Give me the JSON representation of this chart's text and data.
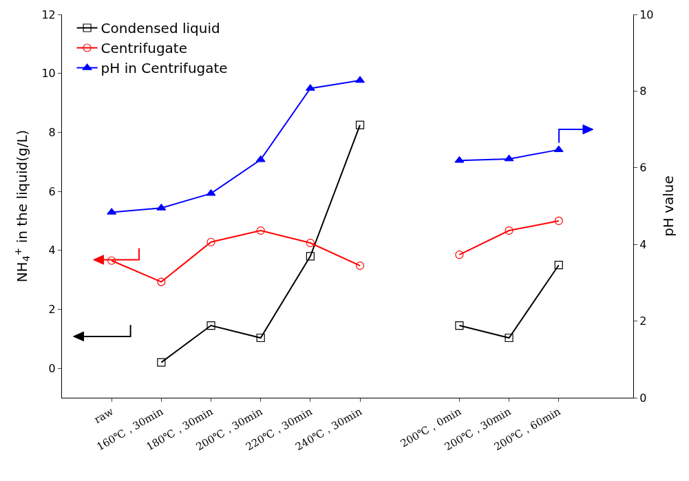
{
  "chart_data": {
    "type": "line",
    "xlabel": null,
    "ylabel": "NH$_{4}$$^{+}$ in the liquid(g/L)",
    "y2label": "pH value",
    "categories": [
      "raw",
      "160℃，30min",
      "180℃，30min",
      "200℃，30min",
      "220℃，30min",
      "240℃，30min",
      null,
      "200℃，0min",
      "200℃，30min",
      "200℃，60min"
    ],
    "series": [
      {
        "name": "Condensed liquid",
        "color": "#000000",
        "marker": "square",
        "values": [
          null,
          0.2,
          1.45,
          1.03,
          3.8,
          8.25,
          null,
          1.45,
          1.03,
          3.5
        ]
      },
      {
        "name": "Centrifugate",
        "color": "#ff0000",
        "marker": "circle",
        "values": [
          3.65,
          2.93,
          4.28,
          4.67,
          4.25,
          3.48,
          null,
          3.85,
          4.67,
          5.0
        ]
      },
      {
        "name": "pH in Centrifugate",
        "color": "#0000ff",
        "marker": "triangle",
        "axis": "y2",
        "values": [
          4.84,
          4.95,
          5.33,
          6.21,
          8.07,
          8.28,
          null,
          6.19,
          6.23,
          6.47
        ]
      }
    ],
    "ylim": [
      -1,
      12
    ],
    "yticks": [
      0,
      2,
      4,
      6,
      8,
      10,
      12
    ],
    "y2lim": [
      0,
      10
    ],
    "y2ticks": [
      0,
      2,
      4,
      6,
      8,
      10
    ],
    "legend": "top left",
    "line_style": "solid"
  }
}
